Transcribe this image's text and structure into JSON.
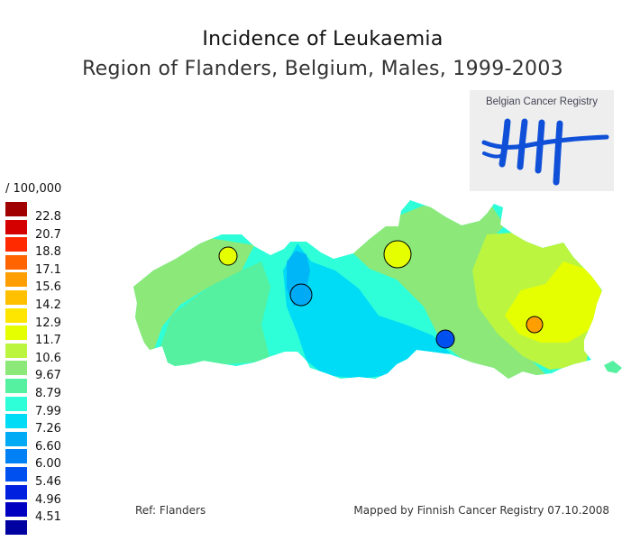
{
  "title": "Incidence of Leukaemia",
  "subtitle": "Region of Flanders, Belgium, Males, 1999-2003",
  "legend": {
    "unit": "/ 100,000",
    "items": [
      {
        "label": "22.8",
        "color": "#a00000"
      },
      {
        "label": "20.7",
        "color": "#d40000"
      },
      {
        "label": "18.8",
        "color": "#ff2a00"
      },
      {
        "label": "17.1",
        "color": "#ff6400"
      },
      {
        "label": "15.6",
        "color": "#ff9e00"
      },
      {
        "label": "14.2",
        "color": "#ffc000"
      },
      {
        "label": "12.9",
        "color": "#ffe600"
      },
      {
        "label": "11.7",
        "color": "#e6ff00"
      },
      {
        "label": "10.6",
        "color": "#bbf540"
      },
      {
        "label": "9.67",
        "color": "#8ce878"
      },
      {
        "label": "8.79",
        "color": "#55f0a0"
      },
      {
        "label": "7.99",
        "color": "#2effd8"
      },
      {
        "label": "7.26",
        "color": "#00dcf5"
      },
      {
        "label": "6.60",
        "color": "#00aaf5"
      },
      {
        "label": "6.00",
        "color": "#0080f5"
      },
      {
        "label": "5.46",
        "color": "#0050f0"
      },
      {
        "label": "4.96",
        "color": "#0020e0"
      },
      {
        "label": "4.51",
        "color": "#0000c0"
      },
      {
        "label": "",
        "color": "#0000a0"
      }
    ]
  },
  "logo": {
    "text": "Belgian Cancer Registry",
    "color": "#1050d8"
  },
  "markers": [
    {
      "name": "marker-west",
      "color": "#e6ff00"
    },
    {
      "name": "marker-center-west",
      "color": "#00aaf5"
    },
    {
      "name": "marker-north",
      "color": "#e6ff00"
    },
    {
      "name": "marker-brussels",
      "color": "#0050f0"
    },
    {
      "name": "marker-east",
      "color": "#ff9e00"
    }
  ],
  "footer": {
    "ref": "Ref: Flanders",
    "mapped": "Mapped by Finnish Cancer Registry 07.10.2008"
  }
}
